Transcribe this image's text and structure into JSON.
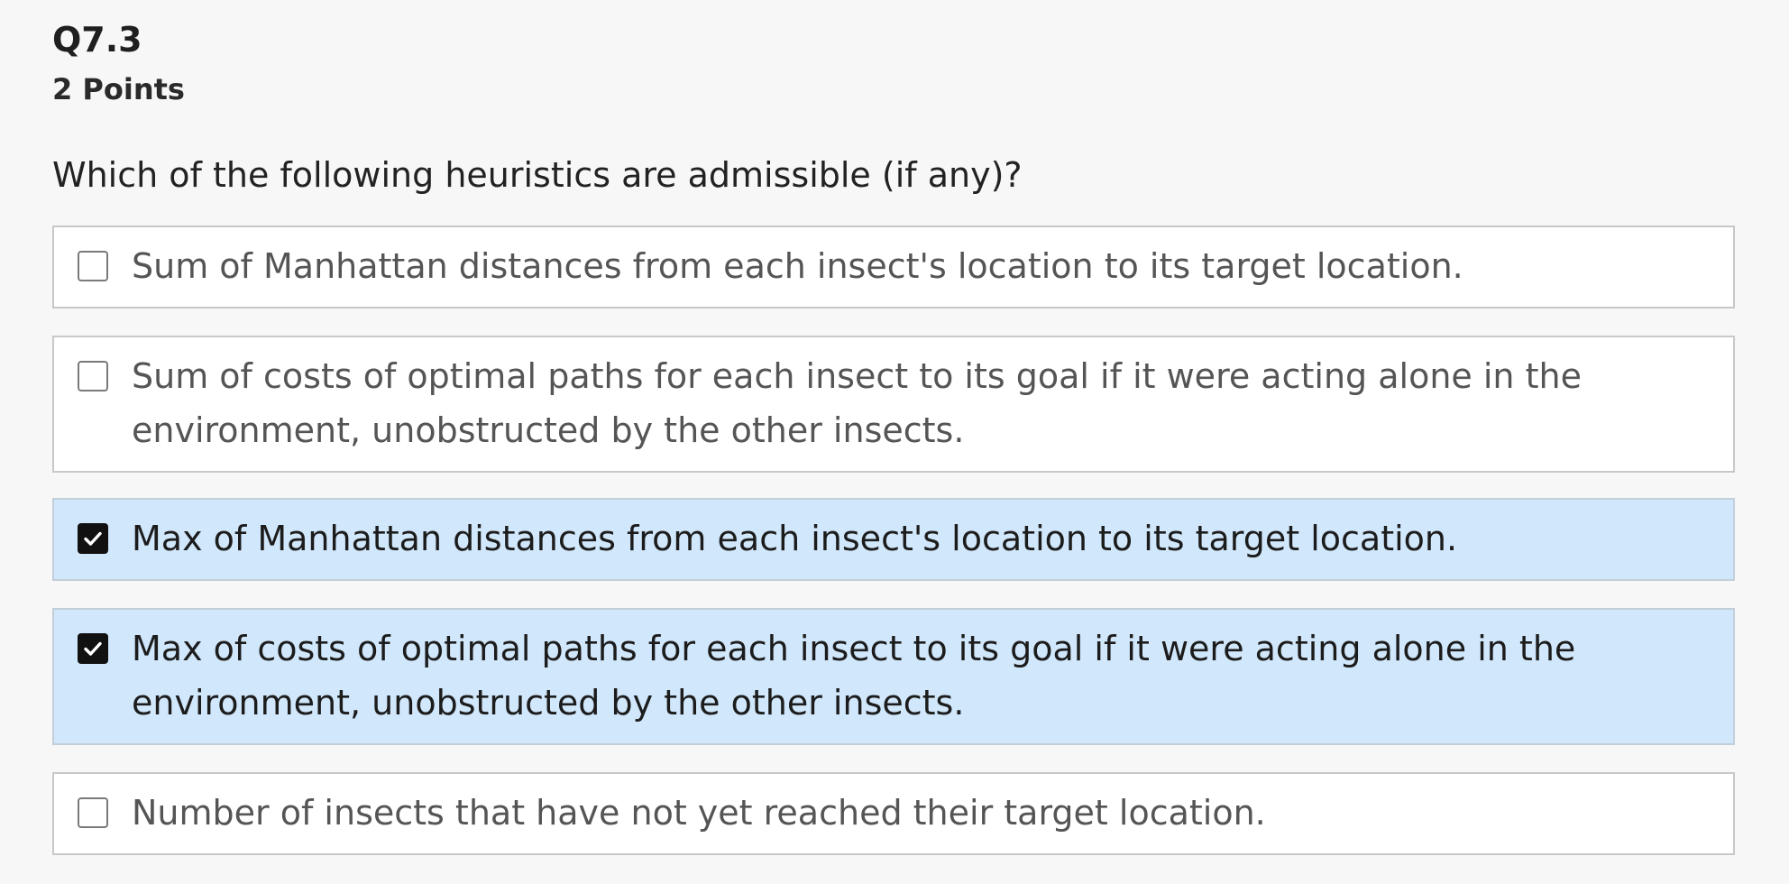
{
  "question": {
    "number": "Q7.3",
    "points": "2 Points",
    "prompt": "Which of the following heuristics are admissible (if any)?"
  },
  "options": [
    {
      "label": "Sum of Manhattan distances from each insect's location to its target location.",
      "checked": false
    },
    {
      "label": "Sum of costs of optimal paths for each insect to its goal if it were acting alone in the environment, unobstructed by the other insects.",
      "checked": false
    },
    {
      "label": "Max of Manhattan distances from each insect's location to its target location.",
      "checked": true
    },
    {
      "label": "Max of costs of optimal paths for each insect to its goal if it were acting alone in the environment, unobstructed by the other insects.",
      "checked": true
    },
    {
      "label": "Number of insects that have not yet reached their target location.",
      "checked": false
    }
  ],
  "icons": {
    "checked": "checkmark-icon",
    "unchecked": "empty-checkbox"
  },
  "colors": {
    "selected_background": "#d1e7fb",
    "checkbox_checked": "#111111"
  }
}
